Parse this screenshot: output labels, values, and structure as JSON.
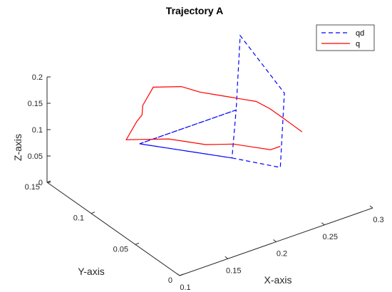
{
  "chart_data": {
    "type": "line",
    "projection": "3d",
    "title": "Trajectory A",
    "xlabel": "X-axis",
    "ylabel": "Y-axis",
    "zlabel": "Z-axis",
    "xlim": [
      0.1,
      0.3
    ],
    "ylim": [
      0,
      0.15
    ],
    "zlim": [
      0,
      0.2
    ],
    "xticks": [
      "0.1",
      "0.15",
      "0.2",
      "0.25",
      "0.3"
    ],
    "yticks": [
      "0",
      "0.05",
      "0.1",
      "0.15"
    ],
    "zticks": [
      "0",
      "0.05",
      "0.1",
      "0.15",
      "0.2"
    ],
    "grid": false,
    "legend": {
      "placement": "top-right"
    },
    "series": [
      {
        "name": "qd",
        "color": "#0000ff",
        "style": "dashed",
        "x": [
          0.15,
          0.25,
          0.2,
          0.15,
          0.25,
          0.25,
          0.3,
          0.3,
          0.25,
          0.2,
          0.15
        ],
        "y": [
          0.1,
          0.1,
          0.05,
          0.1,
          0.1,
          0.1,
          0.15,
          0.1,
          0.05,
          0.05,
          0.1
        ],
        "z": [
          0.1,
          0.1,
          0.1,
          0.1,
          0.1,
          0.1,
          0.15,
          0.1,
          0.05,
          0.1,
          0.1
        ]
      },
      {
        "name": "q",
        "color": "#ff0000",
        "style": "solid",
        "x": [
          0.25,
          0.24,
          0.23,
          0.22,
          0.21,
          0.2,
          0.19,
          0.18,
          0.17,
          0.16,
          0.15,
          0.16,
          0.17,
          0.18,
          0.19,
          0.2,
          0.21,
          0.22,
          0.23,
          0.24,
          0.25,
          0.26,
          0.27,
          0.28,
          0.285,
          0.29,
          0.295,
          0.3
        ],
        "y": [
          0.05,
          0.05,
          0.06,
          0.07,
          0.075,
          0.08,
          0.09,
          0.1,
          0.105,
          0.11,
          0.115,
          0.12,
          0.125,
          0.13,
          0.14,
          0.145,
          0.15,
          0.145,
          0.14,
          0.13,
          0.125,
          0.12,
          0.115,
          0.11,
          0.1,
          0.09,
          0.085,
          0.08
        ],
        "z": [
          0.09,
          0.09,
          0.09,
          0.09,
          0.09,
          0.09,
          0.09,
          0.09,
          0.09,
          0.09,
          0.09,
          0.095,
          0.1,
          0.1,
          0.1,
          0.105,
          0.11,
          0.11,
          0.11,
          0.105,
          0.1,
          0.095,
          0.09,
          0.085,
          0.08,
          0.07,
          0.06,
          0.05
        ]
      }
    ]
  }
}
